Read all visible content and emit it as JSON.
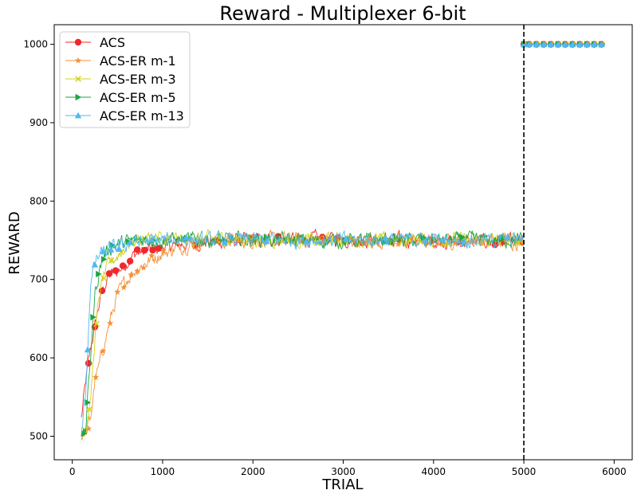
{
  "chart_data": {
    "type": "line",
    "title": "Reward - Multiplexer 6-bit",
    "xlabel": "TRIAL",
    "ylabel": "REWARD",
    "xlim": [
      -200,
      6200
    ],
    "ylim": [
      470,
      1025
    ],
    "x_ticks": [
      0,
      1000,
      2000,
      3000,
      4000,
      5000,
      6000
    ],
    "y_ticks": [
      500,
      600,
      700,
      800,
      900,
      1000
    ],
    "grid": false,
    "legend_position": "top-left",
    "vertical_line": {
      "x": 5000,
      "style": "dashed",
      "color": "#000000"
    },
    "noise_amplitude": 9,
    "series": [
      {
        "name": "ACS",
        "color": "#f0282d",
        "marker": "circle",
        "x": [
          100,
          150,
          200,
          250,
          300,
          350,
          400,
          450,
          500,
          600,
          700,
          800,
          900,
          1000,
          1200,
          1500,
          2000,
          2500,
          3000,
          3500,
          4000,
          4500,
          5000
        ],
        "y": [
          522,
          570,
          610,
          640,
          670,
          690,
          703,
          708,
          710,
          722,
          733,
          736,
          738,
          741,
          745,
          748,
          750,
          752,
          751,
          750,
          749,
          748,
          748
        ],
        "marker_x": [
          180,
          250,
          330,
          410,
          480,
          560,
          640,
          720,
          800,
          890,
          960,
          1360,
          1610,
          2000,
          2280,
          2560,
          2770,
          2940,
          3210,
          3530,
          3620,
          3990,
          4270,
          4680,
          4770,
          4970
        ],
        "exploit_x": [
          5000,
          5900
        ],
        "exploit_y": 1000,
        "exploit_marker_x": [
          5000,
          5060,
          5140,
          5220,
          5300,
          5380,
          5460,
          5540,
          5620,
          5700,
          5780,
          5860
        ]
      },
      {
        "name": "ACS-ER m-1",
        "color": "#f5923c",
        "marker": "star",
        "x": [
          100,
          150,
          200,
          250,
          300,
          350,
          400,
          450,
          500,
          600,
          700,
          800,
          900,
          1000,
          1200,
          1500,
          2000,
          2500,
          3000,
          3500,
          4000,
          4500,
          5000
        ],
        "y": [
          500,
          505,
          520,
          570,
          590,
          615,
          640,
          660,
          680,
          700,
          712,
          720,
          728,
          733,
          742,
          748,
          750,
          751,
          750,
          749,
          750,
          749,
          749
        ],
        "marker_x": [
          140,
          180,
          260,
          340,
          420,
          500,
          570,
          650,
          720,
          790,
          880,
          1010,
          1430,
          1760,
          2130,
          2460,
          2850,
          3280,
          3610,
          3960,
          4430
        ],
        "exploit_x": [
          5000,
          5900
        ],
        "exploit_y": 1000,
        "exploit_marker_x": [
          5000,
          5060,
          5140,
          5220,
          5300,
          5380,
          5460,
          5540,
          5620,
          5700,
          5780,
          5860
        ]
      },
      {
        "name": "ACS-ER m-3",
        "color": "#d2d21e",
        "marker": "x",
        "x": [
          100,
          150,
          200,
          250,
          300,
          350,
          400,
          450,
          500,
          600,
          700,
          800,
          900,
          1000,
          1200,
          1500,
          2000,
          2500,
          3000,
          3500,
          4000,
          4500,
          5000
        ],
        "y": [
          505,
          510,
          540,
          625,
          680,
          705,
          718,
          725,
          730,
          743,
          750,
          752,
          753,
          752,
          751,
          752,
          751,
          750,
          751,
          750,
          751,
          750,
          750
        ],
        "marker_x": [
          140,
          190,
          270,
          350,
          430,
          540,
          800,
          1050,
          1330,
          1650,
          2010,
          2380,
          2710,
          3060,
          3470,
          3850,
          4180,
          4520,
          4940
        ],
        "exploit_x": [
          5000,
          5900
        ],
        "exploit_y": 1000,
        "exploit_marker_x": [
          5000,
          5060,
          5140,
          5220,
          5300,
          5380,
          5460,
          5540,
          5620,
          5700,
          5780,
          5860
        ]
      },
      {
        "name": "ACS-ER m-5",
        "color": "#1ea546",
        "marker": "triangle-right",
        "x": [
          100,
          150,
          200,
          250,
          300,
          350,
          400,
          450,
          500,
          600,
          700,
          800,
          900,
          1000,
          1200,
          1500,
          2000,
          2500,
          3000,
          3500,
          4000,
          4500,
          5000
        ],
        "y": [
          495,
          510,
          600,
          680,
          712,
          730,
          738,
          742,
          745,
          748,
          750,
          751,
          751,
          750,
          751,
          750,
          751,
          750,
          749,
          751,
          750,
          751,
          750
        ],
        "marker_x": [
          130,
          170,
          230,
          290,
          350,
          440,
          620,
          900,
          1260,
          1690,
          2150,
          2580,
          3020,
          3460,
          3890,
          4320,
          4760
        ],
        "exploit_x": [
          5000,
          5900
        ],
        "exploit_y": 1000,
        "exploit_marker_x": [
          5000,
          5060,
          5140,
          5220,
          5300,
          5380,
          5460,
          5540,
          5620,
          5700,
          5780,
          5860
        ]
      },
      {
        "name": "ACS-ER m-13",
        "color": "#50b9f0",
        "marker": "triangle-up",
        "x": [
          100,
          150,
          200,
          250,
          300,
          350,
          400,
          450,
          500,
          600,
          700,
          800,
          900,
          1000,
          1200,
          1500,
          2000,
          2500,
          3000,
          3500,
          4000,
          4500,
          5000
        ],
        "y": [
          500,
          560,
          690,
          722,
          730,
          735,
          738,
          740,
          742,
          745,
          748,
          749,
          750,
          750,
          751,
          750,
          751,
          750,
          751,
          750,
          751,
          750,
          751
        ],
        "marker_x": [
          170,
          250,
          340,
          430,
          520,
          640,
          880,
          1260,
          1690,
          2150,
          2590,
          3030,
          3470,
          3910,
          4340,
          4820
        ],
        "exploit_x": [
          5000,
          5900
        ],
        "exploit_y": 1000,
        "exploit_marker_x": [
          5000,
          5060,
          5140,
          5220,
          5300,
          5380,
          5460,
          5540,
          5620,
          5700,
          5780,
          5860
        ]
      }
    ]
  }
}
